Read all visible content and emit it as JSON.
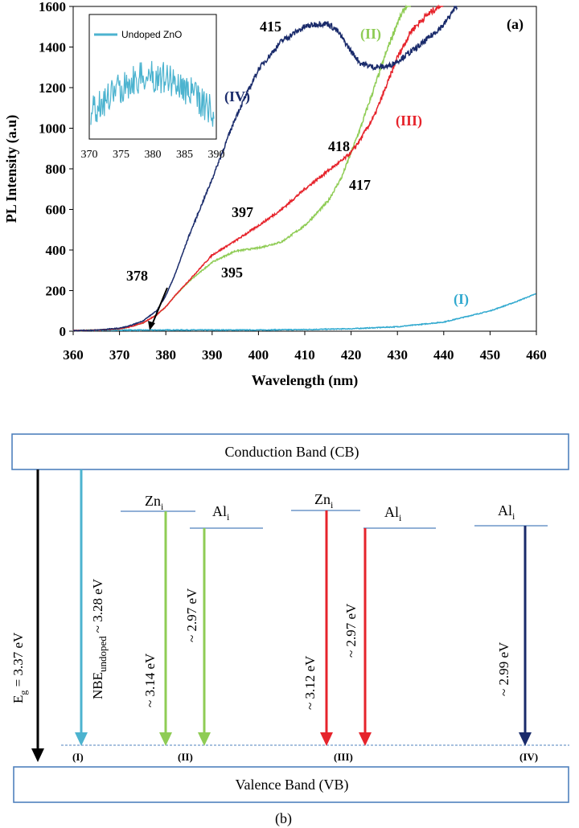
{
  "chart_data": [
    {
      "type": "line",
      "title": "",
      "panel_label": "(a)",
      "xlabel": "Wavelength (nm)",
      "ylabel": "PL Intensity (a.u)",
      "xlim": [
        360,
        460
      ],
      "ylim": [
        0,
        1600
      ],
      "xticks": [
        "360",
        "370",
        "380",
        "390",
        "400",
        "410",
        "420",
        "430",
        "440",
        "450",
        "460"
      ],
      "yticks": [
        "0",
        "200",
        "400",
        "600",
        "800",
        "1000",
        "1200",
        "1400",
        "1600"
      ],
      "series": [
        {
          "name": "(I)",
          "color": "#31a9cf",
          "x": [
            360,
            370,
            380,
            390,
            400,
            410,
            420,
            430,
            440,
            450,
            455,
            460
          ],
          "y": [
            3,
            5,
            6,
            6,
            6,
            8,
            12,
            22,
            45,
            100,
            140,
            185
          ]
        },
        {
          "name": "(II)",
          "color": "#8fcc55",
          "x": [
            360,
            365,
            370,
            372,
            375,
            378,
            380,
            382,
            385,
            390,
            395,
            400,
            405,
            410,
            415,
            418,
            420,
            422,
            425,
            428,
            430,
            433
          ],
          "y": [
            3,
            5,
            12,
            20,
            40,
            80,
            120,
            175,
            245,
            340,
            395,
            410,
            440,
            520,
            640,
            760,
            880,
            1000,
            1200,
            1400,
            1520,
            1650
          ]
        },
        {
          "name": "(III)",
          "color": "#e6232b",
          "x": [
            360,
            365,
            370,
            372,
            375,
            378,
            380,
            382,
            385,
            390,
            395,
            397,
            400,
            405,
            410,
            415,
            418,
            420,
            422,
            425,
            428,
            430,
            433,
            436,
            440
          ],
          "y": [
            3,
            5,
            12,
            20,
            40,
            80,
            120,
            175,
            250,
            375,
            445,
            475,
            520,
            600,
            700,
            790,
            840,
            880,
            945,
            1060,
            1230,
            1350,
            1480,
            1550,
            1620
          ]
        },
        {
          "name": "(IV)",
          "color": "#1a2b6b",
          "x": [
            360,
            365,
            370,
            372,
            375,
            378,
            380,
            382,
            385,
            390,
            395,
            400,
            405,
            410,
            413,
            415,
            417,
            420,
            422,
            425,
            428,
            430,
            435,
            440,
            443
          ],
          "y": [
            3,
            5,
            15,
            25,
            50,
            100,
            175,
            280,
            470,
            750,
            1050,
            1290,
            1430,
            1500,
            1515,
            1515,
            1480,
            1380,
            1320,
            1300,
            1305,
            1330,
            1410,
            1510,
            1610
          ]
        }
      ],
      "annotations": [
        "415",
        "418",
        "417",
        "397",
        "395",
        "378"
      ],
      "inset": {
        "legend": "Undoped ZnO",
        "xlim": [
          370,
          390
        ],
        "xticks": [
          "370",
          "375",
          "380",
          "385",
          "390"
        ],
        "color": "#4cb3cf"
      }
    },
    {
      "type": "diagram",
      "panel_label": "(b)",
      "conduction_band": "Conduction Band (CB)",
      "valence_band": "Valence Band (VB)",
      "eg_label": "E",
      "eg_sub": "g",
      "eg_value": " = 3.37 eV",
      "nbe_main": "NBE",
      "nbe_sub": "undoped",
      "nbe_value": "~ 3.28 eV",
      "levels": {
        "zn": "Zn",
        "al": "Al",
        "sub": "i"
      },
      "transitions": [
        {
          "value": "~ 3.14 eV",
          "color": "#8fcc55"
        },
        {
          "value": "~ 2.97 eV",
          "color": "#8fcc55"
        },
        {
          "value": "~ 3.12 eV",
          "color": "#e6232b"
        },
        {
          "value": "~ 2.97 eV",
          "color": "#e6232b"
        },
        {
          "value": "~ 2.99 eV",
          "color": "#1a2b6b"
        }
      ],
      "sample_labels": [
        "(I)",
        "(II)",
        "(III)",
        "(IV)"
      ],
      "colors": {
        "eg": "#000000",
        "nbe": "#4cb3cf",
        "band_border": "#4f81bd"
      }
    }
  ]
}
